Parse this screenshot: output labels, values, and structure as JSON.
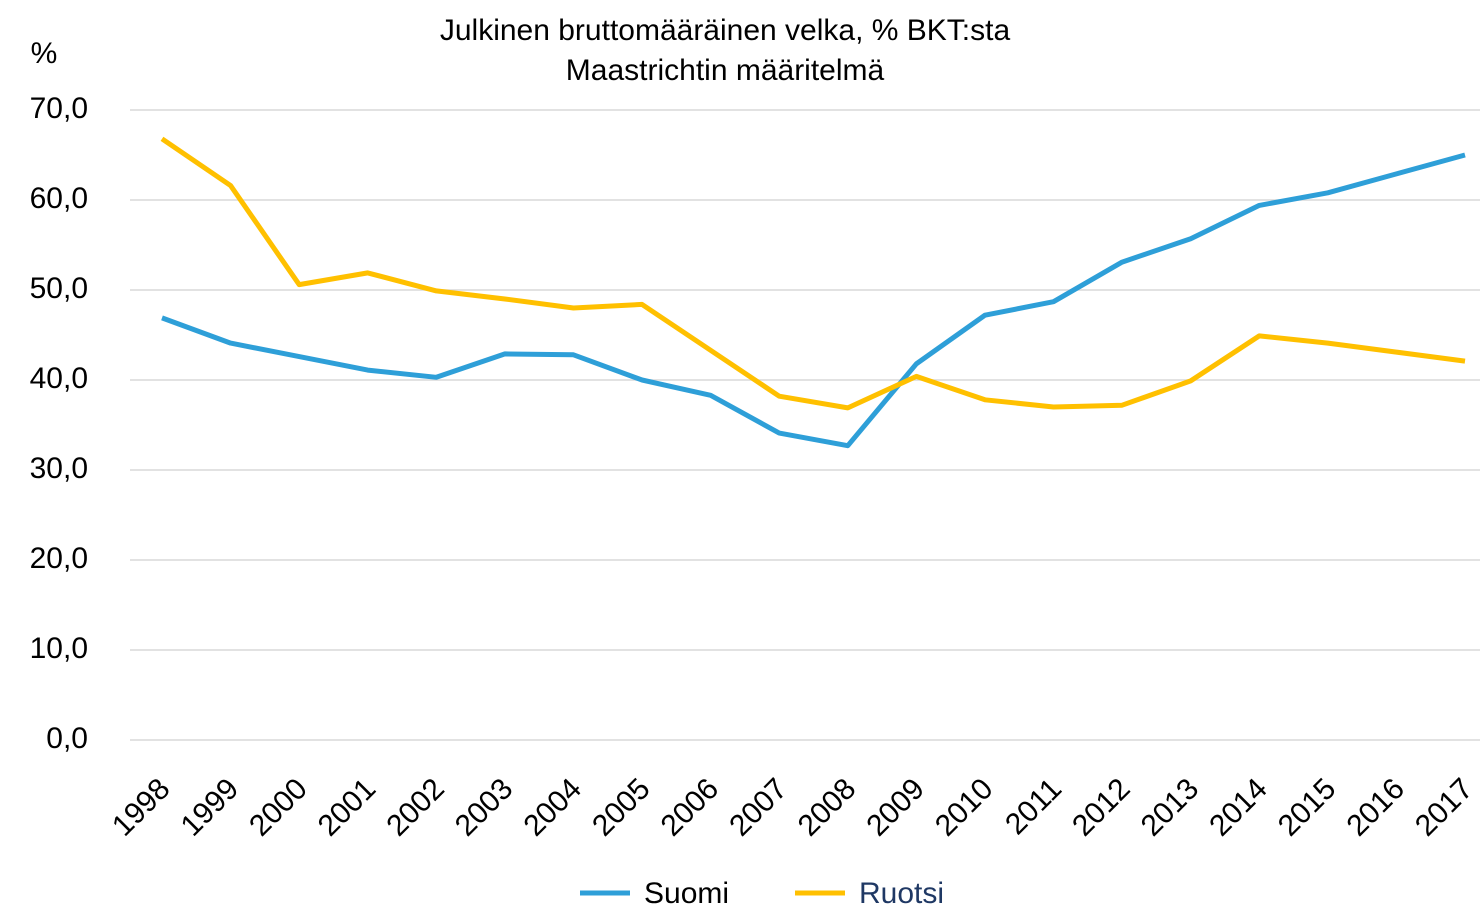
{
  "chart_data": {
    "type": "line",
    "title": "Julkinen bruttomääräinen velka, % BKT:sta",
    "subtitle": "Maastrichtin määritelmä",
    "y_label": "%",
    "categories": [
      "1998",
      "1999",
      "2000",
      "2001",
      "2002",
      "2003",
      "2004",
      "2005",
      "2006",
      "2007",
      "2008",
      "2009",
      "2010",
      "2011",
      "2012",
      "2013",
      "2014",
      "2015",
      "2016",
      "2017"
    ],
    "series": [
      {
        "name": "Suomi",
        "color": "#2e9fd8",
        "values": [
          46.9,
          44.1,
          42.6,
          41.1,
          40.3,
          42.9,
          42.8,
          40.0,
          38.3,
          34.1,
          32.7,
          41.8,
          47.2,
          48.7,
          53.1,
          55.7,
          59.4,
          60.8,
          62.9,
          65.0
        ]
      },
      {
        "name": "Ruotsi",
        "color": "#ffc000",
        "values": [
          66.8,
          61.6,
          50.6,
          51.9,
          49.9,
          49.0,
          48.0,
          48.4,
          43.3,
          38.2,
          36.9,
          40.4,
          37.8,
          37.0,
          37.2,
          39.9,
          44.9,
          44.1,
          43.1,
          42.1
        ]
      }
    ],
    "ylim": [
      0,
      70
    ],
    "yticks": [
      {
        "value": 0,
        "label": "0,0"
      },
      {
        "value": 10,
        "label": "10,0"
      },
      {
        "value": 20,
        "label": "20,0"
      },
      {
        "value": 30,
        "label": "30,0"
      },
      {
        "value": 40,
        "label": "40,0"
      },
      {
        "value": 50,
        "label": "50,0"
      },
      {
        "value": 60,
        "label": "60,0"
      },
      {
        "value": 70,
        "label": "70,0"
      }
    ],
    "grid": true,
    "legend": "bottom"
  }
}
